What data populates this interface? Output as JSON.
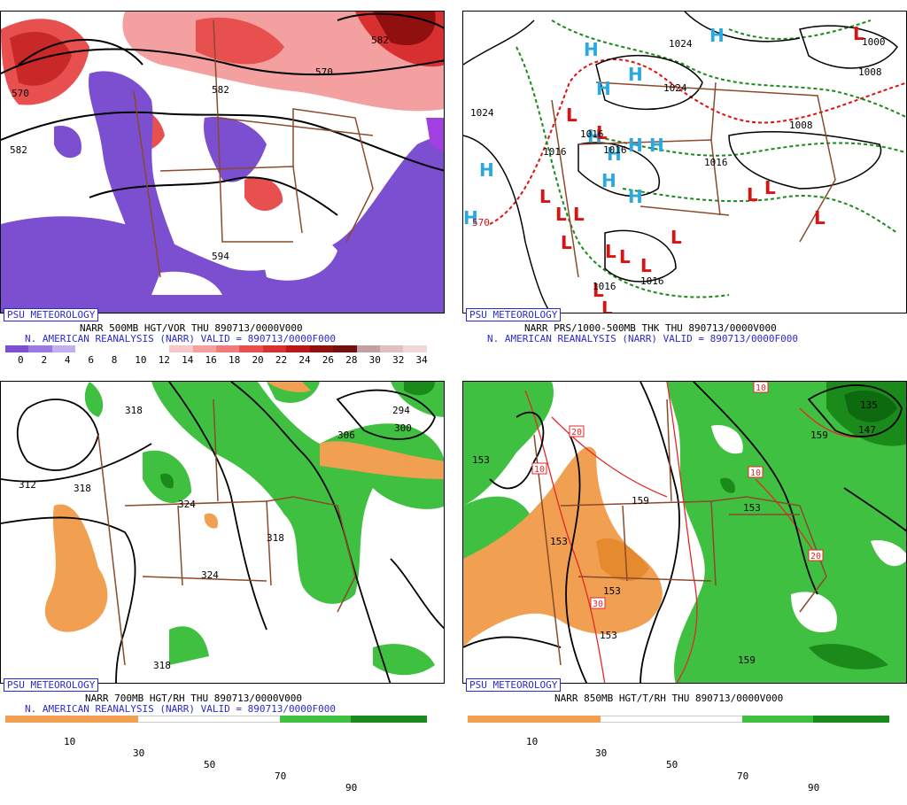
{
  "badge": "PSU METEOROLOGY",
  "panels": {
    "tl": {
      "header1": "NARR 500MB HGT/VOR THU 890713/0000V000",
      "header2": "N. AMERICAN REANALYSIS (NARR) VALID = 890713/0000F000",
      "contour_labels": [
        "570",
        "582",
        "582",
        "570",
        "594",
        "582"
      ],
      "colorbar_labels": [
        "0",
        "2",
        "4",
        "6",
        "8",
        "10",
        "12",
        "14",
        "16",
        "18",
        "20",
        "22",
        "24",
        "26",
        "28",
        "30",
        "32",
        "34"
      ],
      "colorbar_colors": [
        "#7b4fd0",
        "#9a7ae0",
        "#c0b0ee",
        "#ffffff",
        "#ffffff",
        "#ffffff",
        "#ffffff",
        "#f8c8c8",
        "#f4a0a0",
        "#ee7c7c",
        "#e85050",
        "#d83030",
        "#b81818",
        "#901010",
        "#701010",
        "#c0a0a0",
        "#e0c0c0",
        "#f0d8d8"
      ]
    },
    "tr": {
      "header1": "NARR PRS/1000-500MB THK THU 890713/0000V000",
      "header2": "N. AMERICAN REANALYSIS (NARR) VALID = 890713/0000F000",
      "contour_labels": [
        "1024",
        "1024",
        "1000",
        "1008",
        "1024",
        "1016",
        "1016",
        "1016",
        "1016",
        "1008",
        "1016",
        "1016",
        "570"
      ],
      "highs": [
        "H",
        "H",
        "H",
        "H",
        "H",
        "H",
        "H",
        "H",
        "H",
        "H",
        "H",
        "H"
      ],
      "lows": [
        "L",
        "L",
        "L",
        "L",
        "L",
        "L",
        "L",
        "L",
        "L",
        "L",
        "L",
        "L",
        "L",
        "L",
        "L",
        "L"
      ]
    },
    "bl": {
      "header1": "NARR 700MB HGT/RH THU 890713/0000V000",
      "header2": "N. AMERICAN REANALYSIS (NARR) VALID = 890713/0000F000",
      "contour_labels": [
        "318",
        "312",
        "318",
        "324",
        "318",
        "324",
        "306",
        "294",
        "300",
        "318"
      ],
      "colorbar_labels": [
        "10",
        "30",
        "50",
        "70",
        "90"
      ]
    },
    "br": {
      "header1": "NARR 850MB HGT/T/RH THU 890713/0000V000",
      "contour_labels": [
        "153",
        "153",
        "159",
        "153",
        "153",
        "159",
        "153",
        "135",
        "147",
        "159"
      ],
      "temp_labels": [
        "20",
        "10",
        "10",
        "20",
        "30",
        "10"
      ],
      "colorbar_labels": [
        "10",
        "30",
        "50",
        "70",
        "90"
      ]
    }
  },
  "colors": {
    "border_brown": "#8b4a2b",
    "rh_dry": "#f0a050",
    "rh_moist": "#40c040",
    "rh_wet": "#1a8a1a",
    "vort_neg": "#7b4fd0",
    "vort_pos": "#e85050",
    "high_blue": "#29a9e0",
    "low_red": "#e01010",
    "thickness_red": "#e01010",
    "thickness_green": "#1a8a1a",
    "label_blue": "#2a2ad0"
  }
}
